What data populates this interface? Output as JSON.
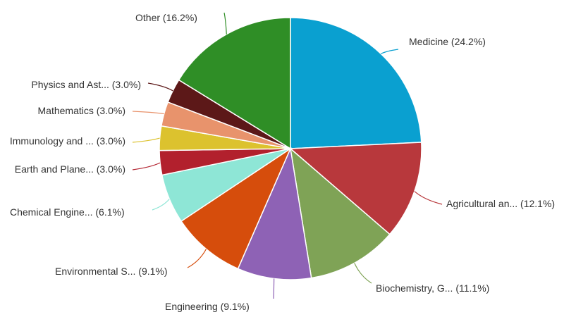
{
  "chart_data": {
    "type": "pie",
    "legend": "none",
    "slices": [
      {
        "label": "Medicine (24.2%)",
        "name": "Medicine",
        "value": 24.2,
        "color": "#0aa0d0"
      },
      {
        "label": "Agricultural an... (12.1%)",
        "name": "Agricultural an...",
        "value": 12.1,
        "color": "#b8383c"
      },
      {
        "label": "Biochemistry, G... (11.1%)",
        "name": "Biochemistry, G...",
        "value": 11.1,
        "color": "#7fa356"
      },
      {
        "label": "Engineering (9.1%)",
        "name": "Engineering",
        "value": 9.1,
        "color": "#8e62b5"
      },
      {
        "label": "Environmental S... (9.1%)",
        "name": "Environmental S...",
        "value": 9.1,
        "color": "#d64d0c"
      },
      {
        "label": "Chemical Engine... (6.1%)",
        "name": "Chemical Engine...",
        "value": 6.1,
        "color": "#8ee6d6"
      },
      {
        "label": "Earth and Plane... (3.0%)",
        "name": "Earth and Plane...",
        "value": 3.0,
        "color": "#b2202d"
      },
      {
        "label": "Immunology and ... (3.0%)",
        "name": "Immunology and ...",
        "value": 3.0,
        "color": "#dcc22e"
      },
      {
        "label": "Mathematics (3.0%)",
        "name": "Mathematics",
        "value": 3.0,
        "color": "#e8936c"
      },
      {
        "label": "Physics and Ast... (3.0%)",
        "name": "Physics and Ast...",
        "value": 3.0,
        "color": "#5c1818"
      },
      {
        "label": "Other (16.2%)",
        "name": "Other",
        "value": 16.2,
        "color": "#2f8e26"
      }
    ]
  }
}
